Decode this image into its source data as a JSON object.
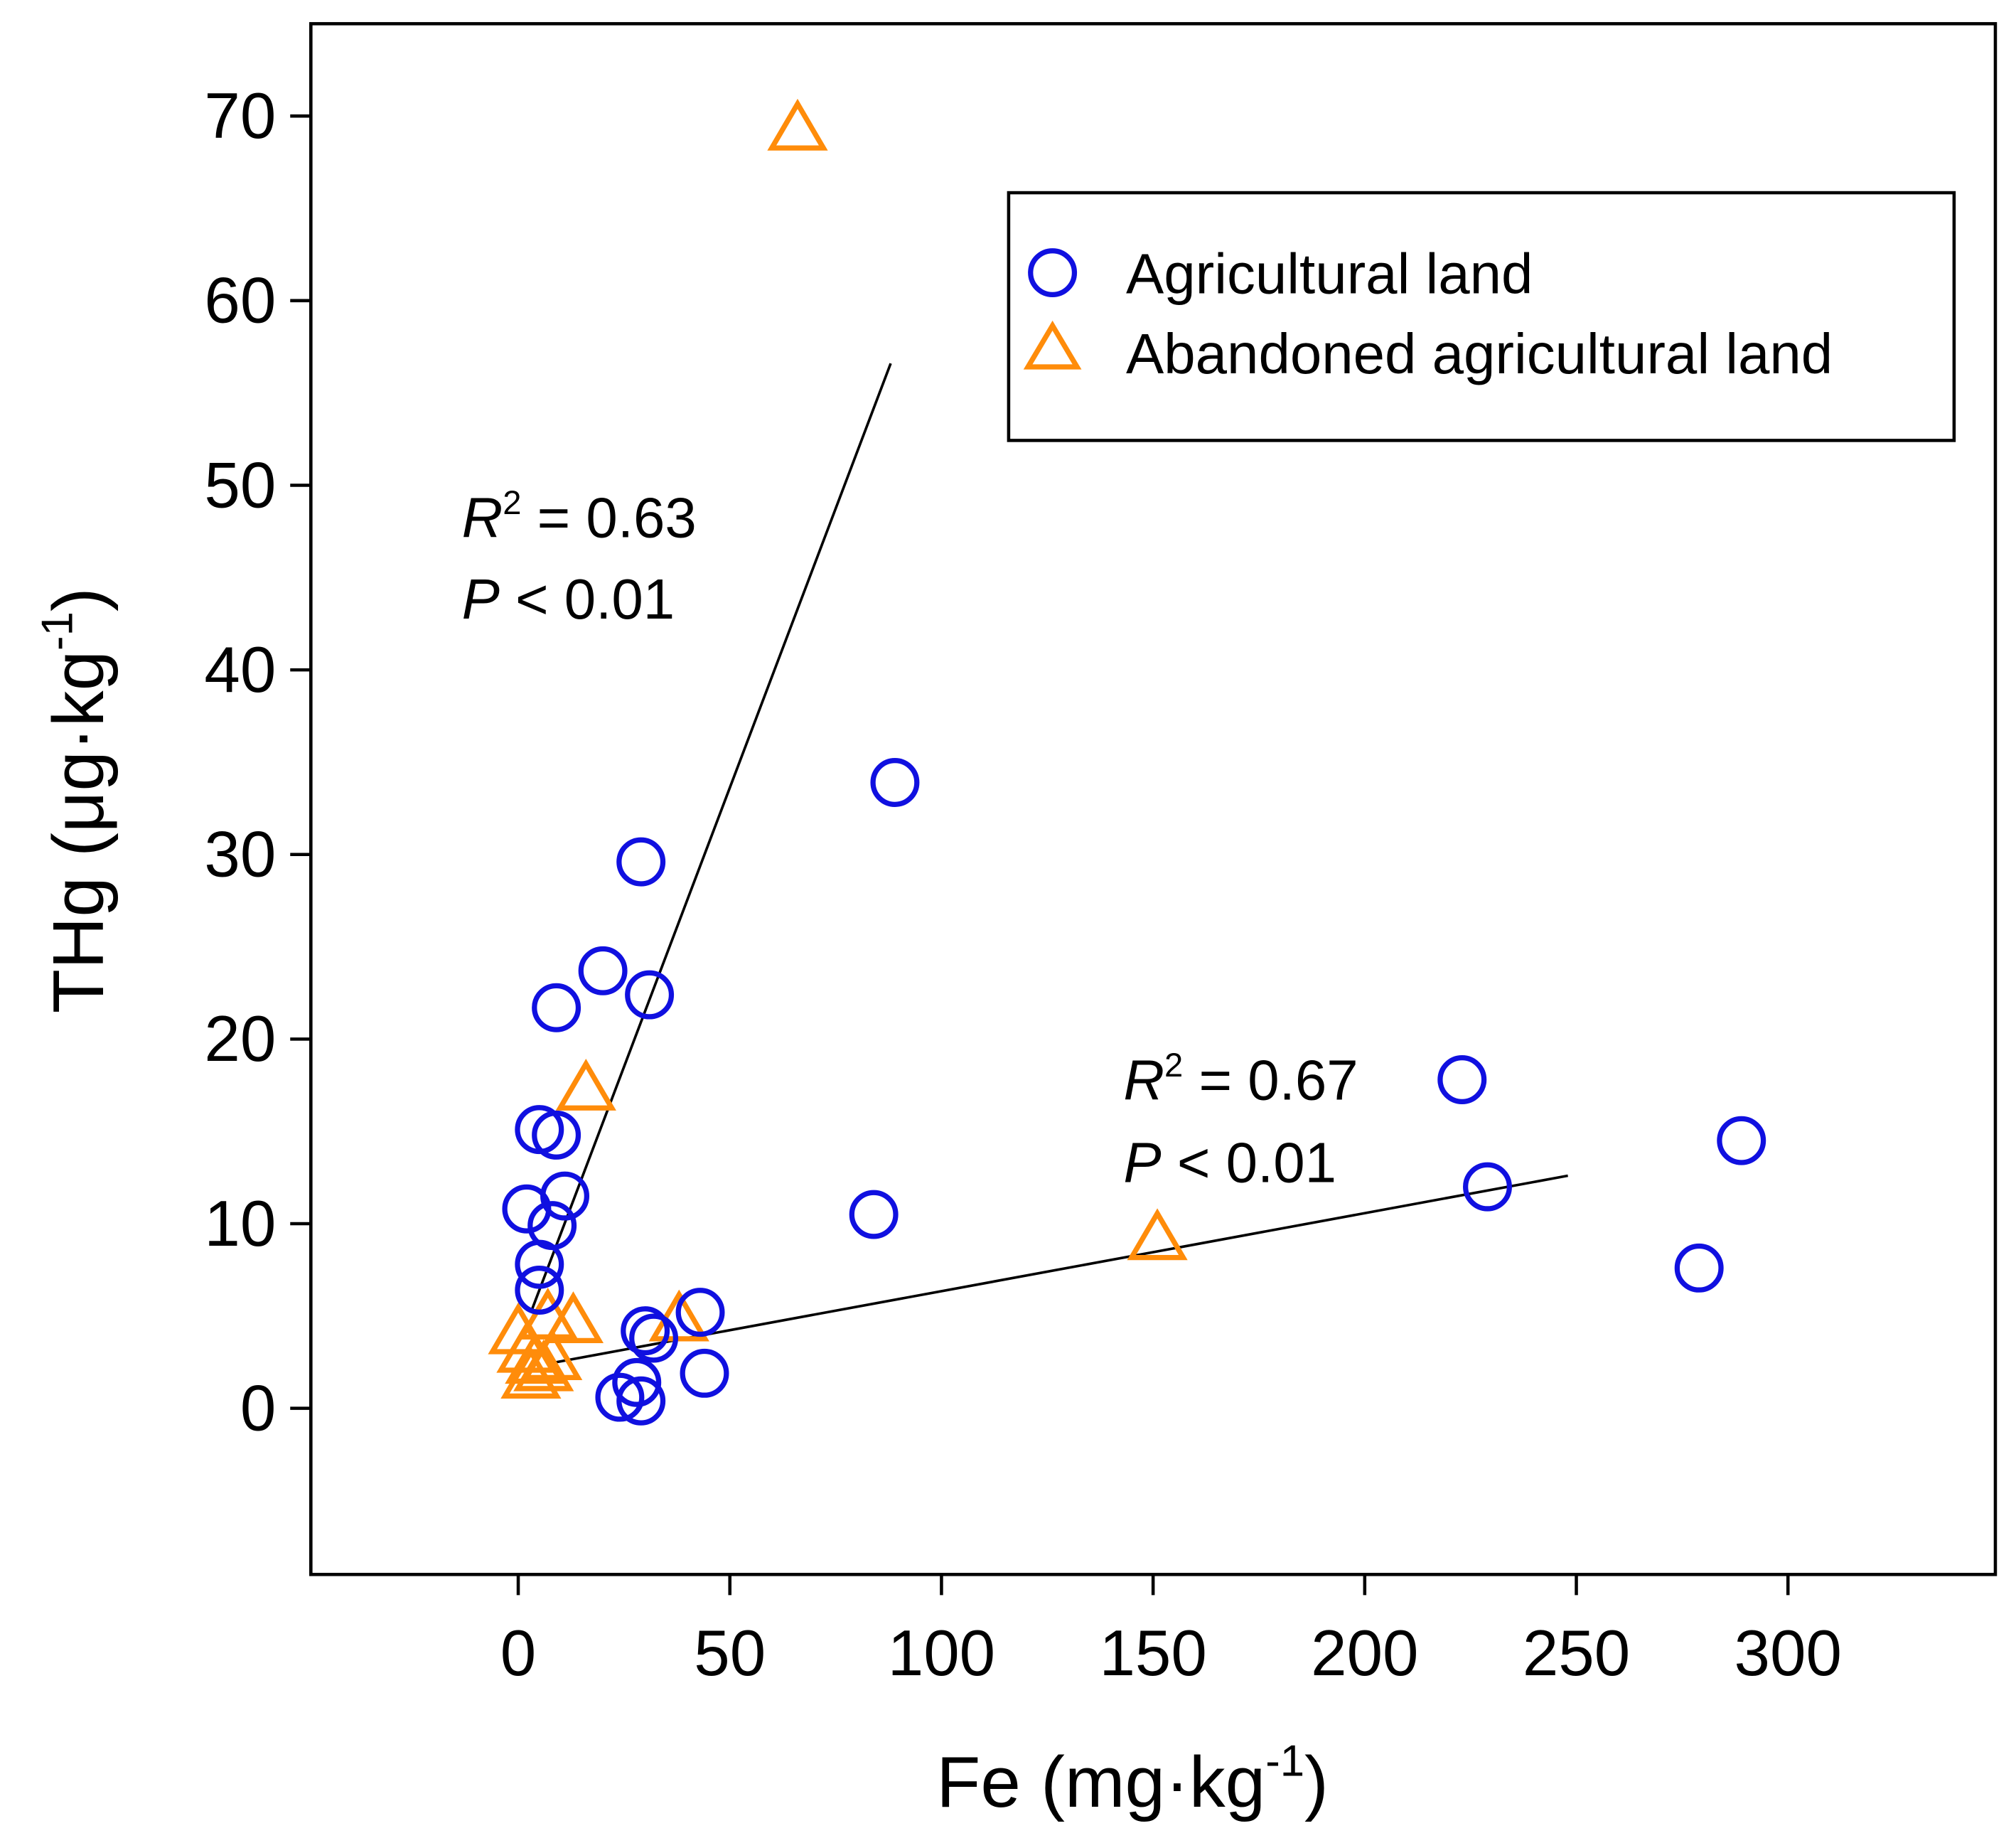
{
  "chart_data": {
    "type": "scatter",
    "title": "",
    "xlabel": {
      "main": "Fe (mg·kg",
      "sup": "-1",
      "close": ")"
    },
    "ylabel": {
      "main": "THg (μg·kg",
      "sup": "-1",
      "close": ")"
    },
    "xlim": [
      -49,
      349
    ],
    "ylim": [
      -9,
      75
    ],
    "xticks": [
      0,
      50,
      100,
      150,
      200,
      250,
      300
    ],
    "yticks": [
      0,
      10,
      20,
      30,
      40,
      50,
      60,
      70
    ],
    "grid": false,
    "legend_position": "top-right",
    "colors": {
      "agricultural": "#1010e0",
      "abandoned": "#ff8c0a",
      "axis": "#000000"
    },
    "series": [
      {
        "name": "Agricultural land",
        "marker": "circle",
        "x": [
          29,
          31,
          89,
          20,
          9,
          5,
          9,
          11,
          2,
          8,
          5,
          5,
          84,
          43,
          30,
          32,
          44,
          24,
          28,
          29,
          223,
          229,
          289,
          279
        ],
        "y": [
          29.6,
          22.4,
          33.9,
          23.7,
          21.7,
          15.1,
          14.8,
          11.5,
          10.8,
          9.9,
          7.8,
          6.4,
          10.5,
          5.2,
          4.2,
          3.8,
          1.9,
          0.6,
          1.4,
          0.4,
          17.8,
          12,
          14.5,
          7.6
        ]
      },
      {
        "name": "Abandoned agricultural land",
        "marker": "triangle",
        "x": [
          66,
          16,
          151,
          13,
          7,
          0,
          2,
          4,
          6,
          8,
          3,
          38
        ],
        "y": [
          69.4,
          17.4,
          9.3,
          4.8,
          5,
          4.2,
          3.2,
          2.6,
          2.2,
          2.8,
          1.8,
          4.9
        ]
      }
    ],
    "fits": [
      {
        "x": [
          3,
          88
        ],
        "y": [
          5.2,
          56.6
        ]
      },
      {
        "x": [
          9,
          248
        ],
        "y": [
          2.5,
          12.6
        ]
      }
    ],
    "annotations": [
      {
        "r_label": "R",
        "r_sup": "2",
        "r_value": " = 0.63",
        "p_label": "P",
        "p_value": " < 0.01"
      },
      {
        "r_label": "R",
        "r_sup": "2",
        "r_value": " = 0.67",
        "p_label": "P",
        "p_value": " < 0.01"
      }
    ]
  }
}
